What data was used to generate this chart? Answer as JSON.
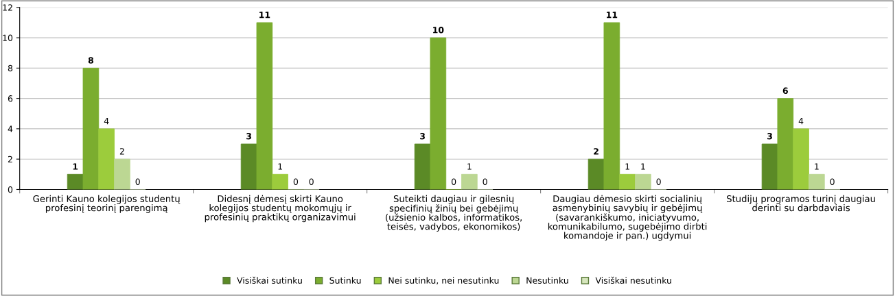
{
  "chart_data": {
    "type": "bar",
    "categories": [
      "Gerinti Kauno kolegijos studentų profesinį teorinį parengimą",
      "Didesnį dėmesį skirti Kauno kolegijos studentų mokomųjų ir profesinių praktikų organizavimui",
      "Suteikti daugiau ir gilesnių specifinių žinių bei gebėjimų (užsienio kalbos, informatikos, teisės, vadybos, ekonomikos)",
      "Daugiau dėmesio skirti socialinių asmenybinių savybių ir gebėjimų (savarankiškumo, iniciatyvumo, komunikabilumo, sugebėjimo dirbti komandoje ir pan.) ugdymui",
      "Studijų programos turinį daugiau derinti su darbdaviais"
    ],
    "series": [
      {
        "name": "Visiškai sutinku",
        "color": "#5b8a26",
        "values": [
          1,
          3,
          3,
          2,
          3
        ]
      },
      {
        "name": "Sutinku",
        "color": "#7bad2f",
        "values": [
          8,
          11,
          10,
          11,
          6
        ]
      },
      {
        "name": "Nei sutinku, nei nesutinku",
        "color": "#9ccc3c",
        "values": [
          4,
          1,
          0,
          1,
          4
        ]
      },
      {
        "name": "Nesutinku",
        "color": "#bcd793",
        "values": [
          2,
          0,
          1,
          1,
          1
        ]
      },
      {
        "name": "Visiškai nesutinku",
        "color": "#d6e6bd",
        "values": [
          0,
          0,
          0,
          0,
          0
        ]
      }
    ],
    "ylim": [
      0,
      12
    ],
    "yticks": [
      0,
      2,
      4,
      6,
      8,
      10,
      12
    ],
    "grid": "y",
    "legend": "bottom",
    "data_labels": true
  }
}
